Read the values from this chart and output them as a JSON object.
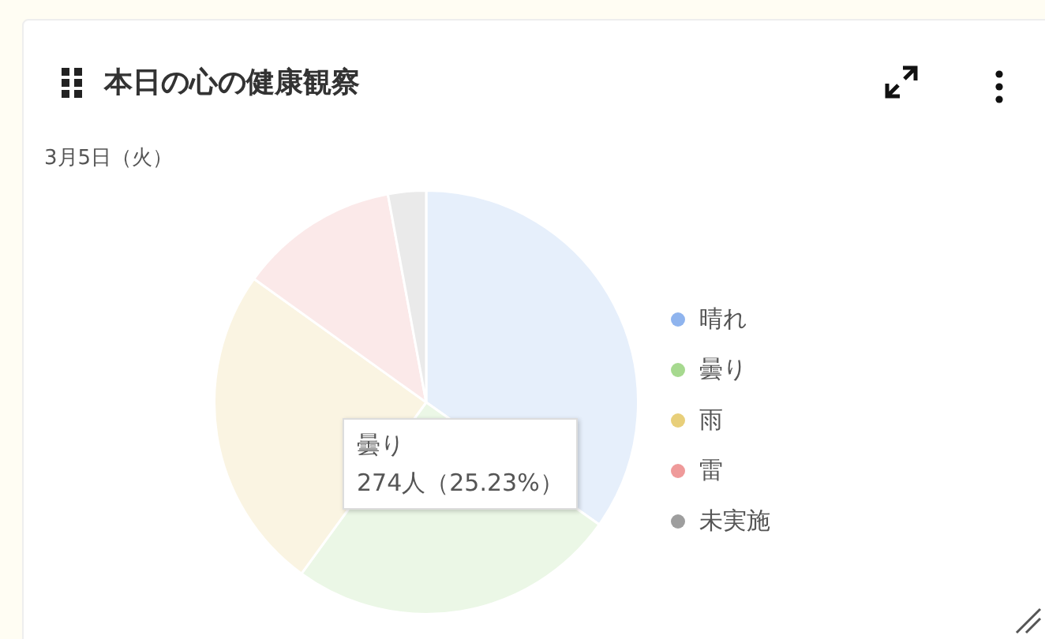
{
  "chart_data": {
    "type": "pie",
    "title": "本日の心の健康観察",
    "subtitle": "3月5日（火）",
    "categories": [
      "晴れ",
      "曇り",
      "雨",
      "雷",
      "未実施"
    ],
    "values": [
      34.8,
      25.23,
      24.9,
      12.2,
      2.9
    ],
    "colors": [
      "#8fb4ee",
      "#a6d98f",
      "#e8cf7a",
      "#ef9a9a",
      "#9e9e9e"
    ],
    "legend": "right",
    "annotations": [
      {
        "text": "曇り\n274人（25.23%）"
      }
    ]
  }
}
